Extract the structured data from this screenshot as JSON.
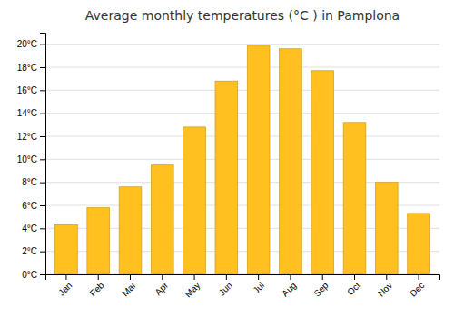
{
  "chart_data": {
    "type": "bar",
    "title": "Average monthly temperatures (°C ) in Pamplona",
    "categories": [
      "Jan",
      "Feb",
      "Mar",
      "Apr",
      "May",
      "Jun",
      "Jul",
      "Aug",
      "Sep",
      "Oct",
      "Nov",
      "Dec"
    ],
    "values": [
      4.3,
      5.8,
      7.6,
      9.5,
      12.8,
      16.8,
      19.9,
      19.6,
      17.7,
      13.2,
      8.0,
      5.3
    ],
    "color": "#FFC020",
    "ylim": [
      0,
      21
    ],
    "yticks": [
      {
        "value": 0,
        "label": "0°C"
      },
      {
        "value": 2,
        "label": "2°C"
      },
      {
        "value": 4,
        "label": "4°C"
      },
      {
        "value": 6,
        "label": "6°C"
      },
      {
        "value": 8,
        "label": "8°C"
      },
      {
        "value": 10,
        "label": "10°C"
      },
      {
        "value": 12,
        "label": "12°C"
      },
      {
        "value": 14,
        "label": "14°C"
      },
      {
        "value": 16,
        "label": "16°C"
      },
      {
        "value": 18,
        "label": "18°C"
      },
      {
        "value": 20,
        "label": "20°C"
      }
    ],
    "grid": true
  }
}
